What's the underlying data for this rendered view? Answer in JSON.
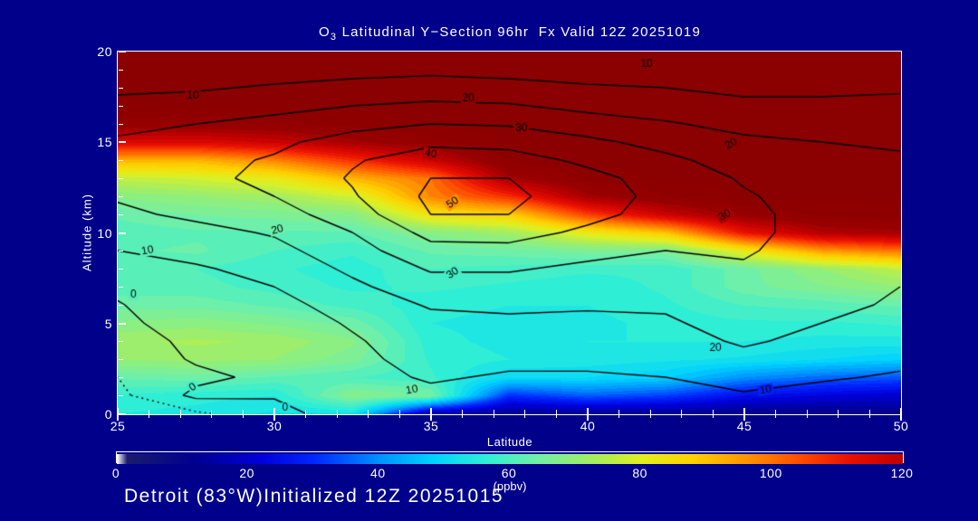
{
  "texts": {
    "title_prefix": "O",
    "title_sub": "3",
    "title_rest": " Latitudinal Y−Section 96hr  Fx Valid 12Z 20251019",
    "caption": "Detroit (83°W)Initialized 12Z 20251015",
    "xlabel": "Latitude",
    "ylabel": "Altitude (km)",
    "colorbar_unit": "(ppbv)"
  },
  "colors": {
    "background": "#00008b",
    "frame": "#ffffff",
    "text": "#ffffff",
    "contour_line": "#000000",
    "dark_red_max": "#8b0000"
  },
  "chart_data": {
    "type": "heatmap",
    "title": "O3 Latitudinal Y-Section 96hr  Fx Valid 12Z 20251019",
    "xlabel": "Latitude",
    "ylabel": "Altitude (km)",
    "xlim": [
      25,
      50
    ],
    "ylim": [
      0,
      20
    ],
    "x_ticks_major": [
      25,
      30,
      35,
      40,
      45,
      50
    ],
    "x_ticks_minor_step": 1,
    "y_ticks_major": [
      0,
      5,
      10,
      15,
      20
    ],
    "y_ticks_minor_step": 1,
    "grid": false,
    "colorbar": {
      "ticks": [
        0,
        20,
        40,
        60,
        80,
        100,
        120
      ],
      "vmin": 0,
      "vmax": 120,
      "unit": "(ppbv)",
      "position": "bottom"
    },
    "lat": [
      25,
      27.5,
      30,
      32.5,
      35,
      37.5,
      40,
      42.5,
      45,
      47.5,
      50
    ],
    "alt": [
      0,
      1,
      2,
      3,
      4,
      5,
      6,
      7,
      8,
      9,
      10,
      11,
      12,
      13,
      14,
      15,
      16,
      17,
      18,
      19,
      20
    ],
    "ozone_fill_ppbv": [
      [
        55,
        57,
        63,
        70,
        72,
        68,
        64,
        61,
        60,
        62,
        61,
        63,
        68,
        76,
        92,
        115,
        128,
        133,
        133,
        133,
        133
      ],
      [
        54,
        56,
        64,
        71,
        73,
        69,
        64,
        61,
        60,
        63,
        62,
        65,
        70,
        78,
        92,
        115,
        128,
        133,
        133,
        133,
        133
      ],
      [
        52,
        55,
        62,
        70,
        72,
        67,
        62,
        59,
        58,
        60,
        62,
        66,
        72,
        82,
        98,
        118,
        129,
        133,
        133,
        133,
        133
      ],
      [
        52,
        68,
        60,
        66,
        68,
        64,
        59,
        57,
        56,
        58,
        62,
        68,
        78,
        92,
        108,
        124,
        131,
        133,
        133,
        133,
        133
      ],
      [
        15,
        65,
        58,
        57,
        56,
        55,
        56,
        58,
        60,
        63,
        68,
        84,
        98,
        100,
        118,
        129,
        133,
        133,
        133,
        133,
        133
      ],
      [
        12,
        30,
        50,
        55,
        54,
        54,
        55,
        57,
        59,
        64,
        72,
        88,
        108,
        124,
        131,
        133,
        133,
        133,
        133,
        133,
        133
      ],
      [
        12,
        35,
        50,
        54,
        55,
        54,
        55,
        56,
        58,
        66,
        82,
        106,
        124,
        131,
        133,
        133,
        133,
        133,
        133,
        133,
        133
      ],
      [
        12,
        32,
        48,
        53,
        55,
        56,
        57,
        58,
        58,
        66,
        90,
        118,
        130,
        133,
        133,
        133,
        133,
        133,
        133,
        133,
        133
      ],
      [
        10,
        25,
        40,
        52,
        55,
        57,
        60,
        64,
        64,
        82,
        112,
        127,
        133,
        133,
        133,
        133,
        133,
        133,
        133,
        133,
        133
      ],
      [
        10,
        22,
        36,
        50,
        54,
        57,
        61,
        67,
        70,
        95,
        122,
        131,
        133,
        133,
        133,
        133,
        133,
        133,
        133,
        133,
        133
      ],
      [
        10,
        20,
        34,
        48,
        54,
        58,
        63,
        70,
        76,
        100,
        124,
        132,
        133,
        133,
        133,
        133,
        133,
        133,
        133,
        133,
        133
      ]
    ],
    "overlay_contour_field": [
      [
        -7,
        -5,
        -4,
        -3,
        -2,
        -1,
        -0.3,
        1,
        5,
        10,
        14,
        18,
        21,
        23,
        23,
        21,
        18,
        13,
        8,
        4,
        2
      ],
      [
        -4.5,
        1,
        -1,
        0.5,
        1,
        2,
        3,
        5,
        9,
        13,
        17,
        22,
        26,
        28,
        27,
        24,
        20,
        14,
        9,
        5,
        2
      ],
      [
        -2,
        0.5,
        1,
        2,
        3,
        5,
        7,
        10,
        13,
        17,
        21,
        26,
        30,
        32,
        31,
        28,
        23,
        17,
        11,
        6,
        3
      ],
      [
        3,
        5,
        7,
        8,
        9,
        11,
        14,
        18,
        22,
        26,
        30,
        35,
        39,
        41,
        39,
        34,
        27,
        20,
        13,
        7,
        3
      ],
      [
        4,
        8,
        11,
        13,
        15,
        17,
        21,
        26,
        31,
        37,
        43,
        50,
        52,
        50,
        45,
        38,
        30,
        22,
        14,
        8,
        4
      ],
      [
        2,
        6,
        9,
        12,
        15,
        18,
        22,
        26,
        31,
        37,
        44,
        50,
        52,
        50,
        44,
        37,
        29,
        21,
        13,
        7,
        3
      ],
      [
        1,
        5,
        9,
        12,
        15,
        18,
        21,
        24,
        28,
        33,
        38,
        43,
        45,
        43,
        38,
        32,
        25,
        17,
        11,
        6,
        2
      ],
      [
        2,
        6,
        10,
        14,
        17,
        19,
        21,
        24,
        27,
        30,
        33,
        36,
        37,
        36,
        32,
        27,
        21,
        15,
        10,
        6,
        2
      ],
      [
        4,
        9,
        14,
        18,
        21,
        23,
        25,
        27,
        29,
        31,
        32,
        32,
        31,
        29,
        26,
        22,
        17,
        12,
        8,
        4,
        2
      ],
      [
        3,
        7,
        11,
        15,
        18,
        20,
        22,
        24,
        25,
        26,
        27,
        27,
        26,
        25,
        23,
        20,
        16,
        12,
        8,
        5,
        2
      ],
      [
        2,
        5,
        9,
        12,
        15,
        17,
        19,
        20,
        21,
        22,
        23,
        23,
        23,
        22,
        21,
        19,
        16,
        12,
        9,
        5,
        3
      ]
    ],
    "overlay_contour_levels": [
      -4,
      0,
      10,
      20,
      30,
      40,
      50
    ],
    "band_step": 2.5,
    "contour_labels": [
      {
        "t": "10",
        "lat": 27.4,
        "alt": 17.55,
        "rot": 0
      },
      {
        "t": "20",
        "lat": 36.2,
        "alt": 17.4,
        "rot": 0
      },
      {
        "t": "30",
        "lat": 37.9,
        "alt": 15.75,
        "rot": 0
      },
      {
        "t": "40",
        "lat": 35.0,
        "alt": 14.35,
        "rot": -10
      },
      {
        "t": "50",
        "lat": 35.7,
        "alt": 11.65,
        "rot": 35
      },
      {
        "t": "10",
        "lat": 41.9,
        "alt": 19.3,
        "rot": 0
      },
      {
        "t": "20",
        "lat": 44.6,
        "alt": 14.9,
        "rot": 30
      },
      {
        "t": "30",
        "lat": 44.4,
        "alt": 10.95,
        "rot": 30
      },
      {
        "t": "20",
        "lat": 30.1,
        "alt": 10.15,
        "rot": 15
      },
      {
        "t": "10",
        "lat": 25.95,
        "alt": 9.0,
        "rot": 10
      },
      {
        "t": "0",
        "lat": 25.5,
        "alt": 6.55,
        "rot": 0
      },
      {
        "t": "30",
        "lat": 35.7,
        "alt": 7.75,
        "rot": 35
      },
      {
        "t": "20",
        "lat": 44.1,
        "alt": 3.6,
        "rot": 0
      },
      {
        "t": "10",
        "lat": 45.7,
        "alt": 1.3,
        "rot": 10
      },
      {
        "t": "10",
        "lat": 34.4,
        "alt": 1.3,
        "rot": 10
      },
      {
        "t": "0",
        "lat": 27.4,
        "alt": 1.45,
        "rot": 35
      },
      {
        "t": "0",
        "lat": 30.35,
        "alt": 0.3,
        "rot": 0
      }
    ],
    "palette": [
      [
        0,
        "#ffffff"
      ],
      [
        1.5,
        "#1c1c6e"
      ],
      [
        12,
        "#000092"
      ],
      [
        22,
        "#0000dc"
      ],
      [
        30,
        "#0028ff"
      ],
      [
        40,
        "#0092ff"
      ],
      [
        48,
        "#00d2ff"
      ],
      [
        56,
        "#2ceed8"
      ],
      [
        64,
        "#70f0a8"
      ],
      [
        72,
        "#a0ee66"
      ],
      [
        80,
        "#e0f020"
      ],
      [
        88,
        "#ffd200"
      ],
      [
        96,
        "#ff9600"
      ],
      [
        104,
        "#ff5000"
      ],
      [
        112,
        "#ea1000"
      ],
      [
        120,
        "#c00000"
      ],
      [
        126,
        "#990000"
      ],
      [
        133,
        "#8b0000"
      ]
    ]
  }
}
